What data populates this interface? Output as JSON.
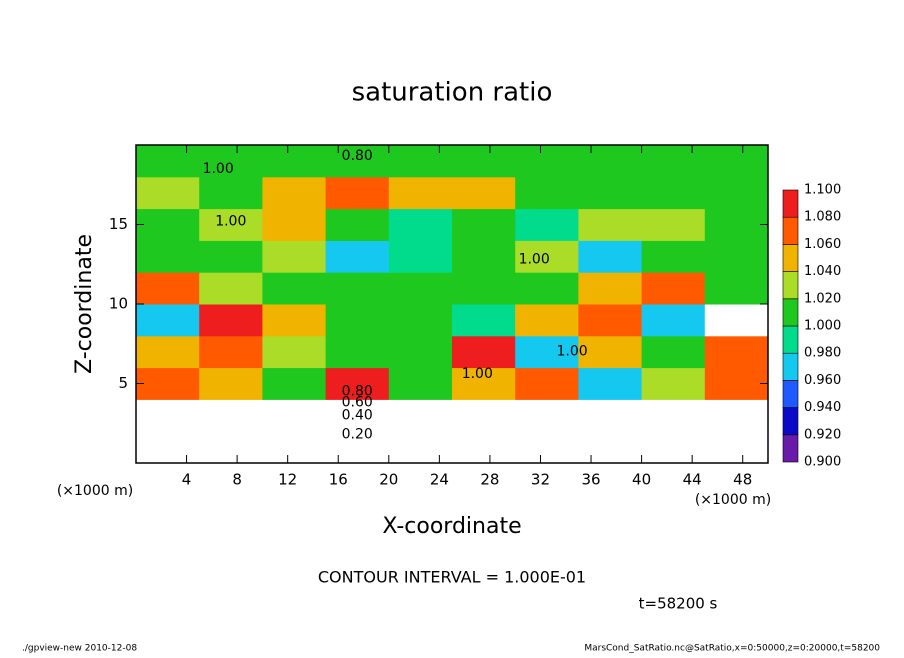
{
  "chart_data": {
    "type": "contour",
    "title": "saturation ratio",
    "x_label": "X-coordinate",
    "y_label": "Z-coordinate",
    "x_unit": "(×1000 m)",
    "y_unit": "(×1000 m)",
    "note": "CONTOUR INTERVAL = 1.000E-01",
    "time": "t=58200 s",
    "footer_left": "./gpview-new  2010-12-08",
    "footer_right": "MarsCond_SatRatio.nc@SatRatio,x=0:50000,z=0:20000,t=58200",
    "xlim": [
      0,
      50
    ],
    "ylim": [
      0,
      20
    ],
    "xticks": [
      4,
      8,
      12,
      16,
      20,
      24,
      28,
      32,
      36,
      40,
      44,
      48
    ],
    "yticks": [
      5,
      10,
      15
    ],
    "x": [
      2.5,
      7.5,
      12.5,
      17.5,
      22.5,
      27.5,
      32.5,
      37.5,
      42.5,
      47.5
    ],
    "y": [
      1,
      3,
      5,
      7,
      9,
      11,
      13,
      15,
      17,
      19
    ],
    "values": [
      [
        0.2,
        0.2,
        0.2,
        0.2,
        0.2,
        0.2,
        0.2,
        0.2,
        0.2,
        0.2
      ],
      [
        0.5,
        0.5,
        0.5,
        0.5,
        0.5,
        0.5,
        0.5,
        0.5,
        0.5,
        0.5
      ],
      [
        1.06,
        1.04,
        1.0,
        1.08,
        1.0,
        1.04,
        1.06,
        0.96,
        1.02,
        1.06
      ],
      [
        1.04,
        1.06,
        1.02,
        1.0,
        1.0,
        1.08,
        0.96,
        1.04,
        1.0,
        1.06
      ],
      [
        0.96,
        1.08,
        1.04,
        1.0,
        1.0,
        0.98,
        1.04,
        1.06,
        0.96,
        1.12
      ],
      [
        1.06,
        1.02,
        1.0,
        1.0,
        1.0,
        1.0,
        1.0,
        1.04,
        1.06,
        1.0
      ],
      [
        1.0,
        1.0,
        1.02,
        0.96,
        0.98,
        1.0,
        1.02,
        0.96,
        1.0,
        1.0
      ],
      [
        1.0,
        1.02,
        1.04,
        1.0,
        0.98,
        1.0,
        0.98,
        1.02,
        1.02,
        1.0
      ],
      [
        1.02,
        1.0,
        1.04,
        1.06,
        1.05,
        1.04,
        1.0,
        1.0,
        1.0,
        1.0
      ],
      [
        1.0,
        1.01,
        1.0,
        1.0,
        1.0,
        1.0,
        1.0,
        1.0,
        1.0,
        1.0
      ]
    ],
    "contour_labels": [
      {
        "text": "1.00",
        "x": 6.5,
        "z": 18.5
      },
      {
        "text": "0.80",
        "x": 17.5,
        "z": 19.3
      },
      {
        "text": "1.00",
        "x": 7.5,
        "z": 15.2
      },
      {
        "text": "1.00",
        "x": 31.5,
        "z": 12.8
      },
      {
        "text": "1.00",
        "x": 34.5,
        "z": 7.0
      },
      {
        "text": "1.00",
        "x": 27,
        "z": 5.6
      },
      {
        "text": "0.80",
        "x": 17.5,
        "z": 4.5
      },
      {
        "text": "0.60",
        "x": 17.5,
        "z": 3.8
      },
      {
        "text": "0.40",
        "x": 17.5,
        "z": 3.0
      },
      {
        "text": "0.20",
        "x": 17.5,
        "z": 1.8
      }
    ],
    "colorbar": {
      "levels": [
        {
          "value": 0.9,
          "label": "0.900"
        },
        {
          "value": 0.92,
          "label": "0.920"
        },
        {
          "value": 0.94,
          "label": "0.940"
        },
        {
          "value": 0.96,
          "label": "0.960"
        },
        {
          "value": 0.98,
          "label": "0.980"
        },
        {
          "value": 1.0,
          "label": "1.000"
        },
        {
          "value": 1.02,
          "label": "1.020"
        },
        {
          "value": 1.04,
          "label": "1.040"
        },
        {
          "value": 1.06,
          "label": "1.060"
        },
        {
          "value": 1.08,
          "label": "1.080"
        },
        {
          "value": 1.1,
          "label": "1.100"
        }
      ],
      "colors": [
        "#6a1aa8",
        "#0a0ac8",
        "#1e5aff",
        "#14c8f0",
        "#00dc8c",
        "#1ec81e",
        "#aadc28",
        "#f0b400",
        "#ff5a00",
        "#ee1e1e"
      ]
    }
  }
}
